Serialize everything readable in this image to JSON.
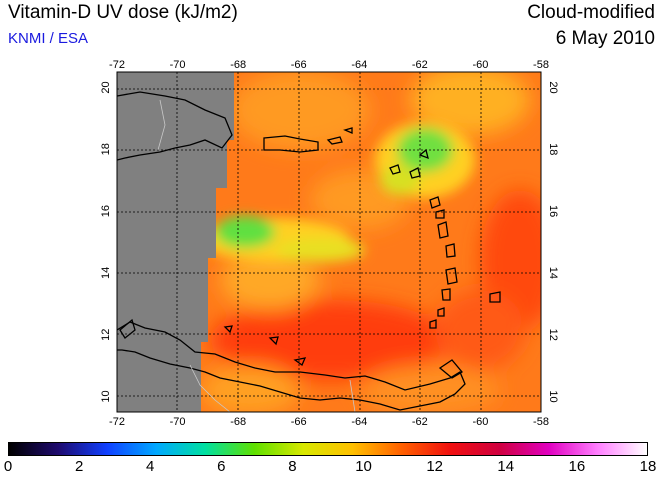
{
  "header": {
    "title": "Vitamin-D UV dose (kJ/m2)",
    "source": "KNMI / ESA",
    "product": "Cloud-modified",
    "date": "6 May 2010"
  },
  "map": {
    "lon_ticks": [
      "-72",
      "-70",
      "-68",
      "-66",
      "-64",
      "-62",
      "-60",
      "-58"
    ],
    "lat_ticks": [
      "20",
      "18",
      "16",
      "14",
      "12",
      "10"
    ],
    "lon_range": [
      -72,
      -58
    ],
    "lat_range": [
      9.5,
      20.5
    ],
    "no_data_color": "#808080",
    "grid": "dotted"
  },
  "colorbar": {
    "labels": [
      "0",
      "2",
      "4",
      "6",
      "8",
      "10",
      "12",
      "14",
      "16",
      "18"
    ],
    "colors": [
      "#000000",
      "#1e0a6e",
      "#1040ff",
      "#00a8ff",
      "#00e0a0",
      "#60e000",
      "#d8e800",
      "#ffc000",
      "#ff6000",
      "#f01010",
      "#d00040",
      "#e000c0",
      "#ff80ff",
      "#ffffff"
    ]
  }
}
